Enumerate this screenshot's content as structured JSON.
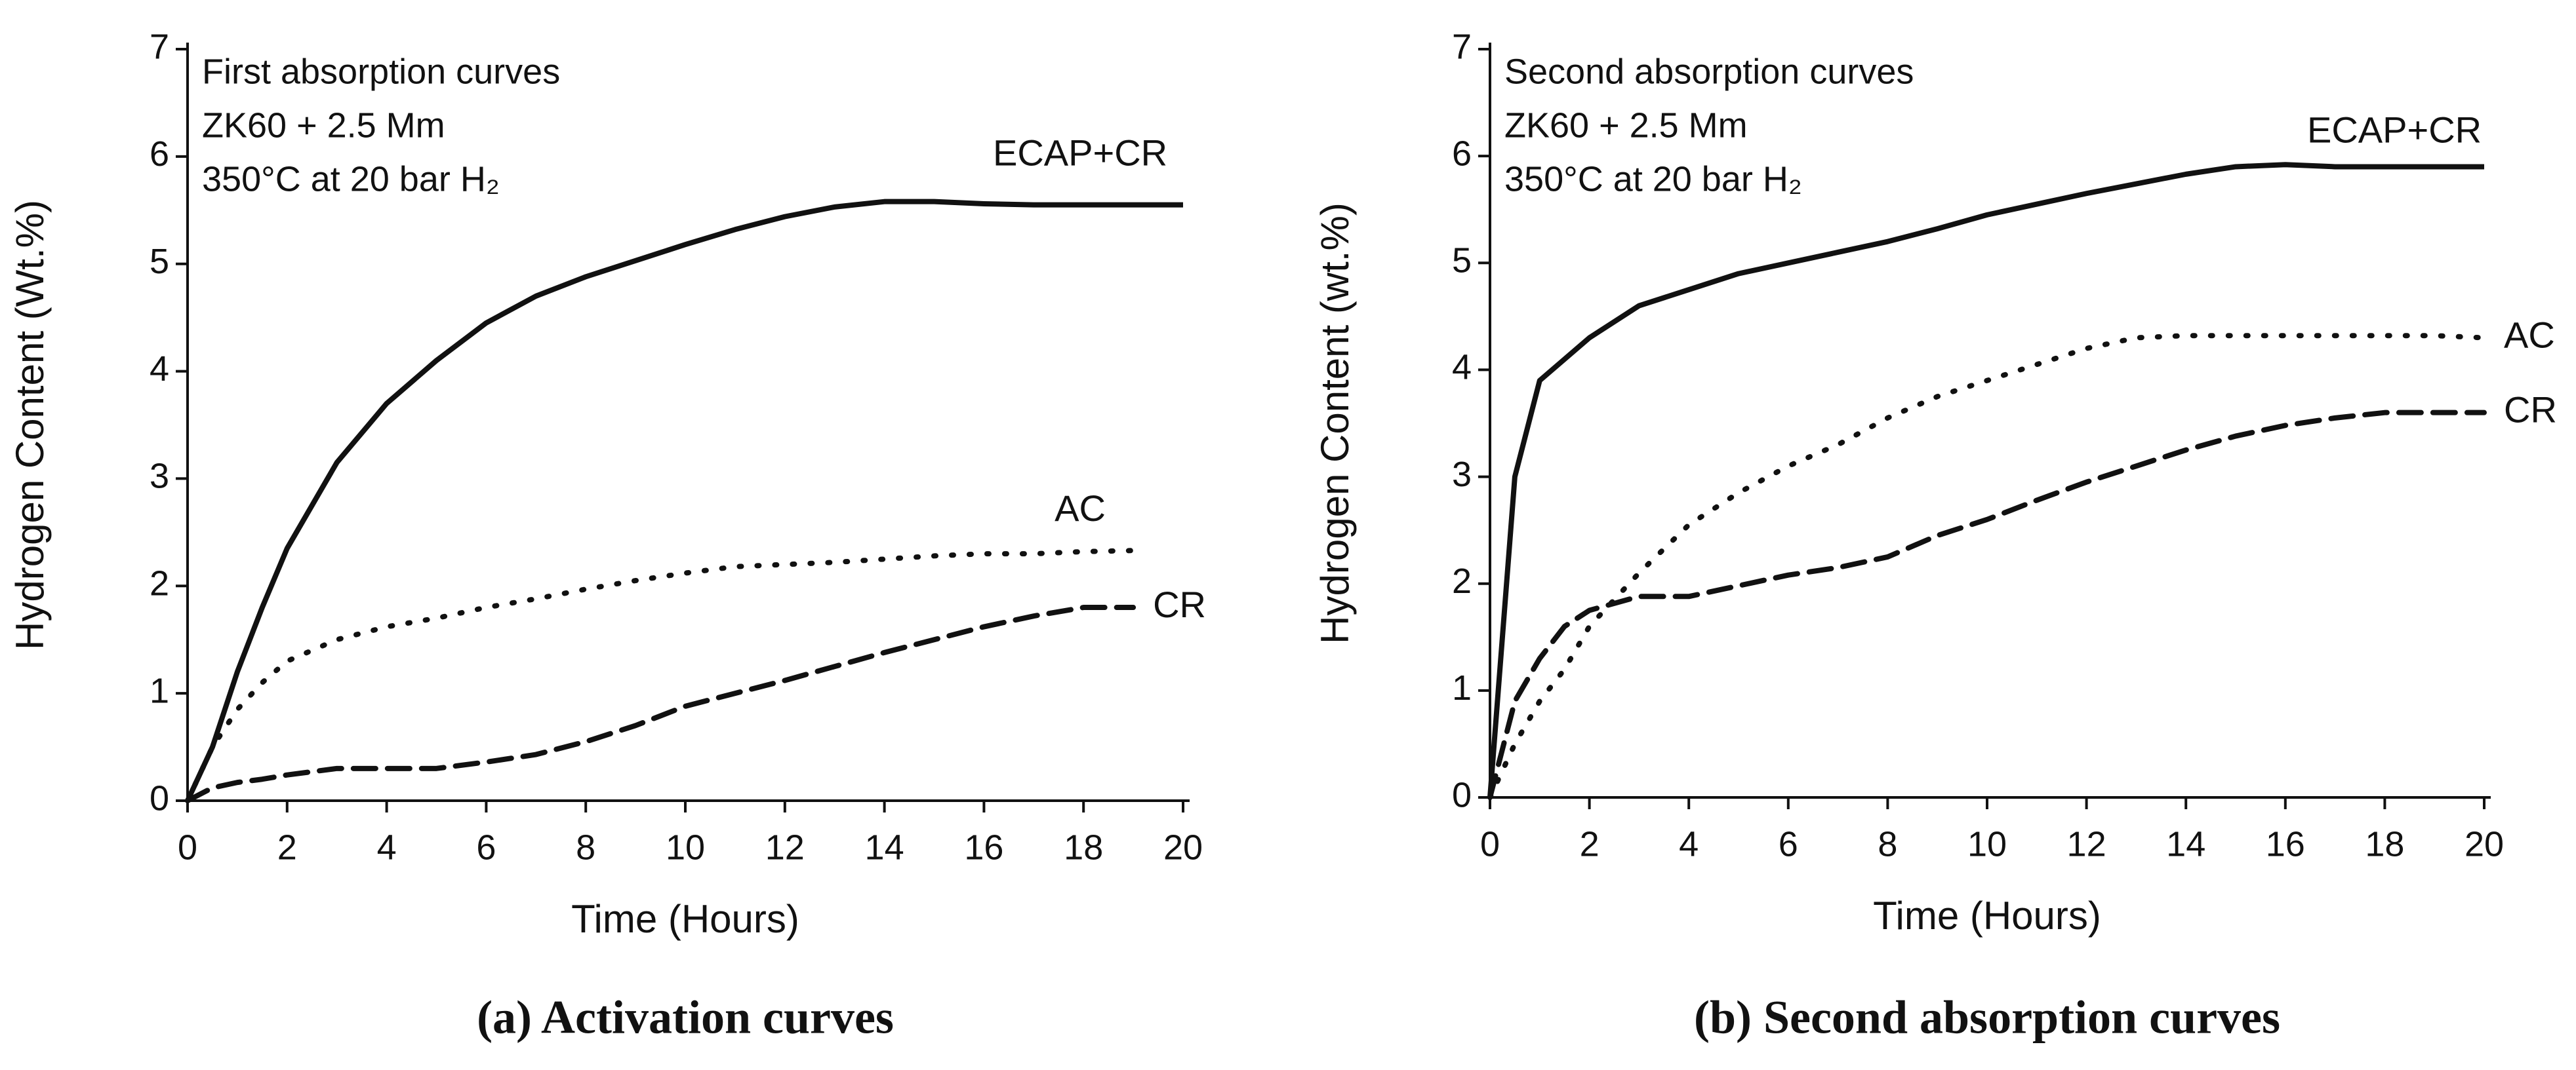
{
  "chart_data": [
    {
      "type": "line",
      "caption": "(a) Activation curves",
      "annotations": [
        "First absorption curves",
        "ZK60 + 2.5 Mm",
        "350°C at 20 bar H₂"
      ],
      "xlabel": "Time (Hours)",
      "ylabel": "Hydrogen Content (Wt.%)",
      "x": [
        0,
        0.5,
        1,
        1.5,
        2,
        3,
        4,
        5,
        6,
        7,
        8,
        9,
        10,
        11,
        12,
        13,
        14,
        15,
        16,
        17,
        18,
        19,
        20
      ],
      "series": [
        {
          "name": "ECAP+CR",
          "color": "#111111",
          "style": "solid",
          "values": [
            0,
            0.5,
            1.2,
            1.8,
            2.35,
            3.15,
            3.7,
            4.1,
            4.45,
            4.7,
            4.88,
            5.03,
            5.18,
            5.32,
            5.44,
            5.53,
            5.58,
            5.58,
            5.56,
            5.55,
            5.55,
            5.55,
            5.55
          ]
        },
        {
          "name": "AC",
          "color": "#111111",
          "style": "dotted",
          "values": [
            0,
            0.5,
            0.85,
            1.1,
            1.3,
            1.5,
            1.62,
            1.7,
            1.8,
            1.88,
            1.97,
            2.05,
            2.12,
            2.18,
            2.2,
            2.22,
            2.25,
            2.28,
            2.3,
            2.3,
            2.32,
            2.33,
            null
          ]
        },
        {
          "name": "CR",
          "color": "#111111",
          "style": "dashed",
          "values": [
            0,
            0.12,
            0.17,
            0.2,
            0.24,
            0.3,
            0.3,
            0.3,
            0.36,
            0.43,
            0.55,
            0.7,
            0.88,
            1.0,
            1.12,
            1.25,
            1.38,
            1.5,
            1.62,
            1.72,
            1.8,
            1.8,
            null
          ]
        }
      ],
      "xlim": [
        0,
        20
      ],
      "ylim": [
        0,
        7
      ],
      "xticks": [
        0,
        2,
        4,
        6,
        8,
        10,
        12,
        14,
        16,
        18,
        20
      ],
      "yticks": [
        0,
        1,
        2,
        3,
        4,
        5,
        6,
        7
      ]
    },
    {
      "type": "line",
      "caption": "(b) Second absorption curves",
      "annotations": [
        "Second absorption curves",
        "ZK60 + 2.5 Mm",
        "350°C at 20 bar H₂"
      ],
      "xlabel": "Time (Hours)",
      "ylabel": "Hydrogen Content (wt.%)",
      "x": [
        0,
        0.5,
        1,
        1.5,
        2,
        3,
        4,
        5,
        6,
        7,
        8,
        9,
        10,
        11,
        12,
        13,
        14,
        15,
        16,
        17,
        18,
        19,
        20
      ],
      "series": [
        {
          "name": "ECAP+CR",
          "color": "#111111",
          "style": "solid",
          "values": [
            0,
            3.0,
            3.9,
            4.1,
            4.3,
            4.6,
            4.75,
            4.9,
            5.0,
            5.1,
            5.2,
            5.32,
            5.45,
            5.55,
            5.65,
            5.74,
            5.83,
            5.9,
            5.92,
            5.9,
            5.9,
            5.9,
            5.9
          ]
        },
        {
          "name": "AC",
          "color": "#111111",
          "style": "dotted",
          "values": [
            0,
            0.5,
            0.9,
            1.2,
            1.6,
            2.1,
            2.55,
            2.85,
            3.1,
            3.3,
            3.55,
            3.75,
            3.9,
            4.05,
            4.2,
            4.3,
            4.32,
            4.32,
            4.32,
            4.32,
            4.32,
            4.32,
            4.3
          ]
        },
        {
          "name": "CR",
          "color": "#111111",
          "style": "dashed",
          "values": [
            0,
            0.9,
            1.3,
            1.6,
            1.75,
            1.88,
            1.88,
            1.98,
            2.08,
            2.15,
            2.25,
            2.45,
            2.6,
            2.78,
            2.95,
            3.1,
            3.25,
            3.38,
            3.48,
            3.55,
            3.6,
            3.6,
            3.6
          ]
        }
      ],
      "xlim": [
        0,
        20
      ],
      "ylim": [
        0,
        7
      ],
      "xticks": [
        0,
        2,
        4,
        6,
        8,
        10,
        12,
        14,
        16,
        18,
        20
      ],
      "yticks": [
        0,
        1,
        2,
        3,
        4,
        5,
        6,
        7
      ]
    }
  ]
}
